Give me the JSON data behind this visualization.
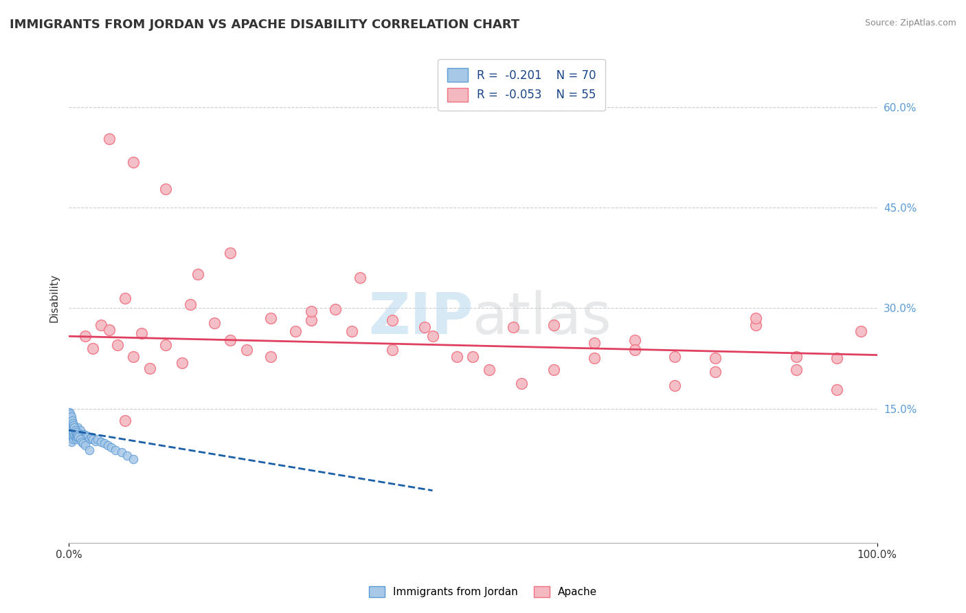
{
  "title": "IMMIGRANTS FROM JORDAN VS APACHE DISABILITY CORRELATION CHART",
  "source": "Source: ZipAtlas.com",
  "ylabel": "Disability",
  "watermark_zip": "ZIP",
  "watermark_atlas": "atlas",
  "xlim": [
    0.0,
    1.0
  ],
  "ylim": [
    -0.05,
    0.68
  ],
  "legend_blue_label": "R =  -0.201    N = 70",
  "legend_pink_label": "R =  -0.053    N = 55",
  "blue_color": "#a8c8e8",
  "blue_edge": "#5b9bd5",
  "pink_color": "#f4b8c1",
  "pink_edge": "#f07080",
  "blue_line_color": "#1a5fa8",
  "pink_line_color": "#e04060",
  "grid_color": "#cccccc",
  "background_color": "#ffffff",
  "blue_x": [
    0.001,
    0.001,
    0.002,
    0.002,
    0.002,
    0.003,
    0.003,
    0.003,
    0.004,
    0.004,
    0.004,
    0.005,
    0.005,
    0.006,
    0.006,
    0.007,
    0.007,
    0.008,
    0.008,
    0.009,
    0.009,
    0.01,
    0.01,
    0.011,
    0.011,
    0.012,
    0.013,
    0.014,
    0.015,
    0.016,
    0.017,
    0.018,
    0.019,
    0.02,
    0.021,
    0.022,
    0.023,
    0.025,
    0.028,
    0.03,
    0.033,
    0.036,
    0.04,
    0.044,
    0.048,
    0.053,
    0.058,
    0.065,
    0.072,
    0.08,
    0.001,
    0.001,
    0.002,
    0.002,
    0.003,
    0.003,
    0.004,
    0.005,
    0.006,
    0.007,
    0.008,
    0.009,
    0.01,
    0.011,
    0.012,
    0.014,
    0.016,
    0.018,
    0.02,
    0.025
  ],
  "blue_y": [
    0.11,
    0.13,
    0.105,
    0.12,
    0.135,
    0.1,
    0.115,
    0.125,
    0.11,
    0.12,
    0.13,
    0.108,
    0.118,
    0.105,
    0.115,
    0.11,
    0.12,
    0.108,
    0.118,
    0.105,
    0.115,
    0.108,
    0.118,
    0.112,
    0.122,
    0.115,
    0.112,
    0.118,
    0.108,
    0.112,
    0.11,
    0.108,
    0.112,
    0.108,
    0.105,
    0.11,
    0.108,
    0.105,
    0.108,
    0.105,
    0.102,
    0.105,
    0.1,
    0.098,
    0.095,
    0.092,
    0.088,
    0.085,
    0.08,
    0.075,
    0.14,
    0.145,
    0.138,
    0.142,
    0.135,
    0.138,
    0.132,
    0.128,
    0.125,
    0.122,
    0.118,
    0.115,
    0.112,
    0.11,
    0.108,
    0.105,
    0.1,
    0.098,
    0.095,
    0.088
  ],
  "pink_x": [
    0.02,
    0.03,
    0.04,
    0.05,
    0.06,
    0.07,
    0.08,
    0.09,
    0.1,
    0.12,
    0.14,
    0.16,
    0.18,
    0.2,
    0.22,
    0.25,
    0.28,
    0.3,
    0.33,
    0.36,
    0.4,
    0.44,
    0.48,
    0.52,
    0.56,
    0.6,
    0.65,
    0.7,
    0.75,
    0.8,
    0.85,
    0.9,
    0.95,
    0.98,
    0.05,
    0.08,
    0.12,
    0.2,
    0.3,
    0.4,
    0.5,
    0.6,
    0.7,
    0.8,
    0.9,
    0.15,
    0.25,
    0.35,
    0.45,
    0.55,
    0.65,
    0.75,
    0.85,
    0.95,
    0.07
  ],
  "pink_y": [
    0.258,
    0.24,
    0.275,
    0.268,
    0.245,
    0.315,
    0.228,
    0.262,
    0.21,
    0.245,
    0.218,
    0.35,
    0.278,
    0.252,
    0.238,
    0.228,
    0.265,
    0.282,
    0.298,
    0.345,
    0.238,
    0.272,
    0.228,
    0.208,
    0.188,
    0.208,
    0.225,
    0.252,
    0.185,
    0.205,
    0.275,
    0.228,
    0.225,
    0.265,
    0.552,
    0.518,
    0.478,
    0.382,
    0.295,
    0.282,
    0.228,
    0.275,
    0.238,
    0.225,
    0.208,
    0.305,
    0.285,
    0.265,
    0.258,
    0.272,
    0.248,
    0.228,
    0.285,
    0.178,
    0.132
  ]
}
